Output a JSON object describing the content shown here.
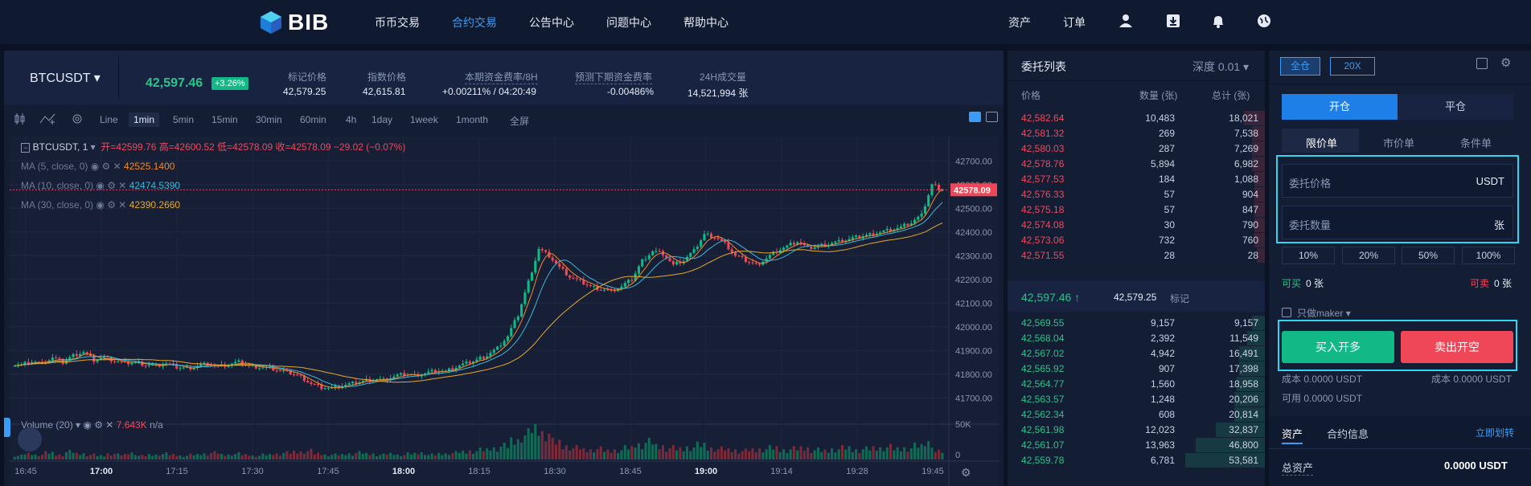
{
  "nav": {
    "logo_text": "BIB",
    "items": [
      "币币交易",
      "合约交易",
      "公告中心",
      "问题中心",
      "帮助中心"
    ],
    "active_index": 1,
    "right": [
      "资产",
      "订单"
    ],
    "icons": [
      "user-icon",
      "download-icon",
      "bell-icon",
      "language-icon"
    ]
  },
  "ticker": {
    "symbol": "BTCUSDT",
    "last_price": "42,597.46",
    "change": "+3.26%",
    "stats": [
      {
        "label": "标记价格",
        "value": "42,579.25"
      },
      {
        "label": "指数价格",
        "value": "42,615.81"
      },
      {
        "label": "本期资金费率/8H",
        "value": "+0.00211% / 04:20:49"
      },
      {
        "label": "预测下期资金费率",
        "value": "-0.00486%"
      },
      {
        "label": "24H成交量",
        "value": "14,521,994 张"
      }
    ]
  },
  "toolbar": {
    "timeframes": [
      "Line",
      "1min",
      "5min",
      "15min",
      "30min",
      "60min",
      "4h",
      "1day",
      "1week",
      "1month",
      "全屏"
    ],
    "active": "1min"
  },
  "chart_data": {
    "type": "candlestick",
    "legend": {
      "symbol": "BTCUSDT, 1",
      "ohlc": "开=42599.76 高=42600.52 低=42578.09 收=42578.09 −29.02 (−0.07%)",
      "ma": [
        {
          "label": "MA (5, close, 0)",
          "value": "42525.1400",
          "color": "#f08a2c"
        },
        {
          "label": "MA (10, close, 0)",
          "value": "42474.5390",
          "color": "#3fb6d8"
        },
        {
          "label": "MA (30, close, 0)",
          "value": "42390.2660",
          "color": "#e8a92a"
        }
      ],
      "volume_label": "Volume (20)",
      "volume_value": "7.643K",
      "volume_na": "n/a"
    },
    "y_ticks": [
      "42700.00",
      "42600.00",
      "42500.00",
      "42400.00",
      "42300.00",
      "42200.00",
      "42100.00",
      "42000.00",
      "41900.00",
      "41800.00",
      "41700.00"
    ],
    "y_range": [
      41650,
      42735
    ],
    "price_label": "42578.09",
    "vol_ticks": [
      "50K",
      "0"
    ],
    "x_ticks": [
      "16:45",
      "17:00",
      "17:15",
      "17:30",
      "17:45",
      "18:00",
      "18:15",
      "18:30",
      "18:45",
      "19:00",
      "19:14",
      "19:28",
      "19:45"
    ],
    "bold_x_ticks": [
      "17:00",
      "18:00",
      "19:00"
    ],
    "close_series": [
      41840,
      41855,
      41845,
      41870,
      41850,
      41880,
      41895,
      41860,
      41870,
      41855,
      41845,
      41850,
      41840,
      41835,
      41845,
      41830,
      41825,
      41835,
      41845,
      41830,
      41840,
      41850,
      41835,
      41830,
      41825,
      41815,
      41805,
      41790,
      41760,
      41745,
      41740,
      41750,
      41760,
      41770,
      41780,
      41775,
      41790,
      41800,
      41795,
      41805,
      41815,
      41810,
      41830,
      41845,
      41860,
      41880,
      41910,
      41960,
      42050,
      42190,
      42330,
      42300,
      42250,
      42210,
      42190,
      42170,
      42160,
      42150,
      42170,
      42200,
      42280,
      42320,
      42310,
      42260,
      42280,
      42320,
      42390,
      42380,
      42350,
      42300,
      42280,
      42260,
      42290,
      42320,
      42340,
      42360,
      42330,
      42340,
      42350,
      42360,
      42370,
      42380,
      42390,
      42400,
      42410,
      42420,
      42440,
      42470,
      42600,
      42578
    ],
    "volume_bars": [
      4,
      6,
      5,
      7,
      5,
      8,
      6,
      5,
      4,
      6,
      5,
      7,
      4,
      5,
      6,
      5,
      4,
      5,
      6,
      7,
      5,
      6,
      5,
      4,
      5,
      6,
      7,
      8,
      9,
      6,
      5,
      5,
      6,
      7,
      6,
      5,
      6,
      5,
      6,
      7,
      5,
      6,
      7,
      8,
      9,
      10,
      12,
      14,
      20,
      26,
      32,
      28,
      18,
      14,
      12,
      10,
      11,
      9,
      10,
      12,
      16,
      18,
      14,
      12,
      11,
      13,
      15,
      12,
      11,
      10,
      9,
      10,
      11,
      12,
      10,
      11,
      12,
      10,
      9,
      11,
      12,
      10,
      11,
      12,
      13,
      11,
      12,
      14,
      18,
      8
    ]
  },
  "book": {
    "title": "委托列表",
    "depth": "深度 0.01",
    "headers": [
      "价格",
      "数量 (张)",
      "总计 (张)"
    ],
    "asks": [
      [
        "42,582.64",
        "10,483",
        "18,021",
        0.08
      ],
      [
        "42,581.32",
        "269",
        "7,538",
        0.05
      ],
      [
        "42,580.03",
        "287",
        "7,269",
        0.05
      ],
      [
        "42,578.76",
        "5,894",
        "6,982",
        0.05
      ],
      [
        "42,577.53",
        "184",
        "1,088",
        0.04
      ],
      [
        "42,576.33",
        "57",
        "904",
        0.04
      ],
      [
        "42,575.18",
        "57",
        "847",
        0.04
      ],
      [
        "42,574.08",
        "30",
        "790",
        0.04
      ],
      [
        "42,573.06",
        "732",
        "760",
        0.04
      ],
      [
        "42,571.55",
        "28",
        "28",
        0.03
      ]
    ],
    "mid_price": "42,597.46 ↑",
    "mid_mark": "42,579.25",
    "mid_mark_label": "标记",
    "bids": [
      [
        "42,569.55",
        "9,157",
        "9,157",
        0.05
      ],
      [
        "42,568.04",
        "2,392",
        "11,549",
        0.07
      ],
      [
        "42,567.02",
        "4,942",
        "16,491",
        0.1
      ],
      [
        "42,565.92",
        "907",
        "17,398",
        0.1
      ],
      [
        "42,564.77",
        "1,560",
        "18,958",
        0.11
      ],
      [
        "42,563.57",
        "1,248",
        "20,206",
        0.12
      ],
      [
        "42,562.34",
        "608",
        "20,814",
        0.12
      ],
      [
        "42,561.98",
        "12,023",
        "32,837",
        0.19
      ],
      [
        "42,561.07",
        "13,963",
        "46,800",
        0.27
      ],
      [
        "42,559.78",
        "6,781",
        "53,581",
        0.31
      ]
    ]
  },
  "trade": {
    "margin_mode": "全仓",
    "leverage": "20X",
    "open": "开仓",
    "close": "平仓",
    "order_types": [
      "限价单",
      "市价单",
      "条件单"
    ],
    "price_label": "委托价格",
    "price_unit": "USDT",
    "qty_label": "委托数量",
    "qty_unit": "张",
    "pcts": [
      "10%",
      "20%",
      "50%",
      "100%"
    ],
    "can_buy_label": "可买",
    "can_buy_val": "0 张",
    "can_sell_label": "可卖",
    "can_sell_val": "0 张",
    "maker_only": "只做maker",
    "buy_btn": "买入开多",
    "sell_btn": "卖出开空",
    "cost_left": "成本 0.0000 USDT",
    "cost_right": "成本 0.0000 USDT",
    "available": "可用 0.0000 USDT",
    "assets_tab": "资产",
    "contract_tab": "合约信息",
    "transfer": "立即划转",
    "total_assets_label": "总资产",
    "total_assets_val": "0.0000 USDT"
  }
}
